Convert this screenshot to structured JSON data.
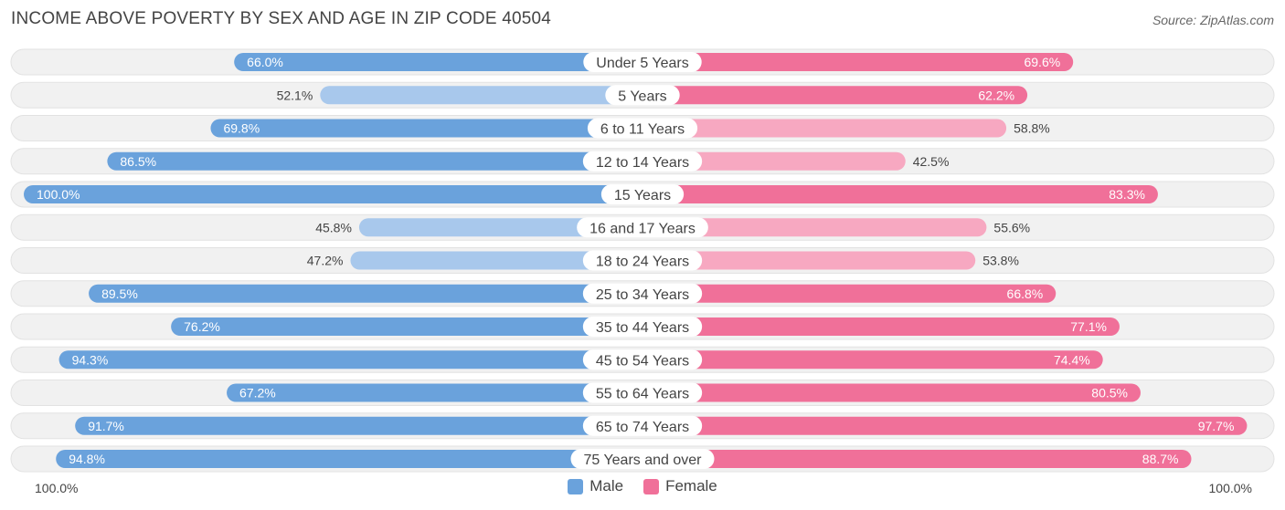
{
  "title": "INCOME ABOVE POVERTY BY SEX AND AGE IN ZIP CODE 40504",
  "source": "Source: ZipAtlas.com",
  "colors": {
    "male_strong": "#6aa2dc",
    "male_light": "#a8c8ec",
    "female_strong": "#f07099",
    "female_light": "#f7a8c1",
    "track": "#f1f1f1"
  },
  "legend": {
    "male": "Male",
    "female": "Female"
  },
  "axis": {
    "left": "100.0%",
    "right": "100.0%"
  },
  "chart_data": {
    "type": "bar",
    "orientation": "horizontal-diverging",
    "categories": [
      "Under 5 Years",
      "5 Years",
      "6 to 11 Years",
      "12 to 14 Years",
      "15 Years",
      "16 and 17 Years",
      "18 to 24 Years",
      "25 to 34 Years",
      "35 to 44 Years",
      "45 to 54 Years",
      "55 to 64 Years",
      "65 to 74 Years",
      "75 Years and over"
    ],
    "series": [
      {
        "name": "Male",
        "values": [
          66.0,
          52.1,
          69.8,
          86.5,
          100.0,
          45.8,
          47.2,
          89.5,
          76.2,
          94.3,
          67.2,
          91.7,
          94.8
        ]
      },
      {
        "name": "Female",
        "values": [
          69.6,
          62.2,
          58.8,
          42.5,
          83.3,
          55.6,
          53.8,
          66.8,
          77.1,
          74.4,
          80.5,
          97.7,
          88.7
        ]
      }
    ],
    "value_labels": {
      "Male": [
        "66.0%",
        "52.1%",
        "69.8%",
        "86.5%",
        "100.0%",
        "45.8%",
        "47.2%",
        "89.5%",
        "76.2%",
        "94.3%",
        "67.2%",
        "91.7%",
        "94.8%"
      ],
      "Female": [
        "69.6%",
        "62.2%",
        "58.8%",
        "42.5%",
        "83.3%",
        "55.6%",
        "53.8%",
        "66.8%",
        "77.1%",
        "74.4%",
        "80.5%",
        "97.7%",
        "88.7%"
      ]
    },
    "xlim": [
      0,
      100
    ],
    "legend_position": "bottom-center"
  }
}
